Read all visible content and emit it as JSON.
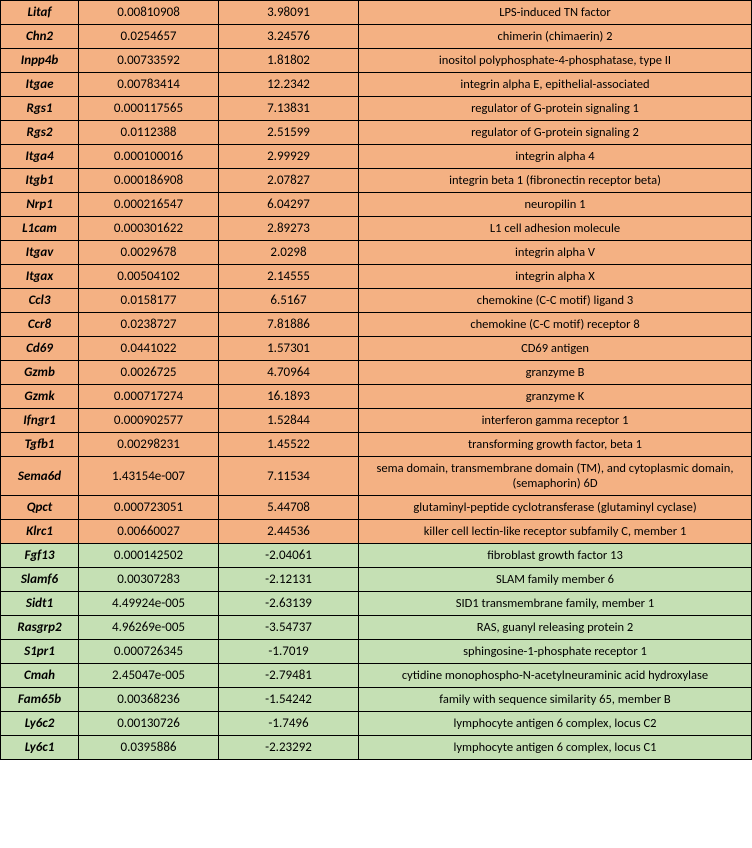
{
  "colors": {
    "orange": "#f4b183",
    "green": "#c5e0b4",
    "border": "#000000"
  },
  "rows": [
    {
      "gene": "Litaf",
      "v1": "0.00810908",
      "v2": "3.98091",
      "desc": "LPS-induced TN factor",
      "group": "orange"
    },
    {
      "gene": "Chn2",
      "v1": "0.0254657",
      "v2": "3.24576",
      "desc": "chimerin (chimaerin) 2",
      "group": "orange"
    },
    {
      "gene": "Inpp4b",
      "v1": "0.00733592",
      "v2": "1.81802",
      "desc": "inositol polyphosphate-4-phosphatase, type II",
      "group": "orange"
    },
    {
      "gene": "Itgae",
      "v1": "0.00783414",
      "v2": "12.2342",
      "desc": "integrin alpha E, epithelial-associated",
      "group": "orange"
    },
    {
      "gene": "Rgs1",
      "v1": "0.000117565",
      "v2": "7.13831",
      "desc": "regulator of G-protein signaling 1",
      "group": "orange"
    },
    {
      "gene": "Rgs2",
      "v1": "0.0112388",
      "v2": "2.51599",
      "desc": "regulator of G-protein signaling 2",
      "group": "orange"
    },
    {
      "gene": "Itga4",
      "v1": "0.000100016",
      "v2": "2.99929",
      "desc": "integrin alpha 4",
      "group": "orange"
    },
    {
      "gene": "Itgb1",
      "v1": "0.000186908",
      "v2": "2.07827",
      "desc": "integrin beta 1 (fibronectin receptor beta)",
      "group": "orange"
    },
    {
      "gene": "Nrp1",
      "v1": "0.000216547",
      "v2": "6.04297",
      "desc": "neuropilin 1",
      "group": "orange"
    },
    {
      "gene": "L1cam",
      "v1": "0.000301622",
      "v2": "2.89273",
      "desc": "L1 cell adhesion molecule",
      "group": "orange"
    },
    {
      "gene": "Itgav",
      "v1": "0.0029678",
      "v2": "2.0298",
      "desc": "integrin alpha V",
      "group": "orange"
    },
    {
      "gene": "Itgax",
      "v1": "0.00504102",
      "v2": "2.14555",
      "desc": "integrin alpha X",
      "group": "orange"
    },
    {
      "gene": "Ccl3",
      "v1": "0.0158177",
      "v2": "6.5167",
      "desc": "chemokine (C-C motif) ligand 3",
      "group": "orange"
    },
    {
      "gene": "Ccr8",
      "v1": "0.0238727",
      "v2": "7.81886",
      "desc": "chemokine (C-C motif) receptor 8",
      "group": "orange"
    },
    {
      "gene": "Cd69",
      "v1": "0.0441022",
      "v2": "1.57301",
      "desc": "CD69 antigen",
      "group": "orange"
    },
    {
      "gene": "Gzmb",
      "v1": "0.0026725",
      "v2": "4.70964",
      "desc": "granzyme B",
      "group": "orange"
    },
    {
      "gene": "Gzmk",
      "v1": "0.000717274",
      "v2": "16.1893",
      "desc": "granzyme K",
      "group": "orange"
    },
    {
      "gene": "Ifngr1",
      "v1": "0.000902577",
      "v2": "1.52844",
      "desc": "interferon gamma receptor 1",
      "group": "orange"
    },
    {
      "gene": "Tgfb1",
      "v1": "0.00298231",
      "v2": "1.45522",
      "desc": "transforming growth factor, beta 1",
      "group": "orange"
    },
    {
      "gene": "Sema6d",
      "v1": "1.43154e-007",
      "v2": "7.11534",
      "desc": "sema domain, transmembrane domain (TM), and cytoplasmic domain, (semaphorin) 6D",
      "group": "orange"
    },
    {
      "gene": "Qpct",
      "v1": "0.000723051",
      "v2": "5.44708",
      "desc": "glutaminyl-peptide cyclotransferase (glutaminyl cyclase)",
      "group": "orange"
    },
    {
      "gene": "Klrc1",
      "v1": "0.00660027",
      "v2": "2.44536",
      "desc": "killer cell lectin-like receptor subfamily C, member 1",
      "group": "orange"
    },
    {
      "gene": "Fgf13",
      "v1": "0.000142502",
      "v2": "-2.04061",
      "desc": "fibroblast growth factor 13",
      "group": "green"
    },
    {
      "gene": "Slamf6",
      "v1": "0.00307283",
      "v2": "-2.12131",
      "desc": "SLAM family member 6",
      "group": "green"
    },
    {
      "gene": "Sidt1",
      "v1": "4.49924e-005",
      "v2": "-2.63139",
      "desc": "SID1 transmembrane family, member 1",
      "group": "green"
    },
    {
      "gene": "Rasgrp2",
      "v1": "4.96269e-005",
      "v2": "-3.54737",
      "desc": "RAS, guanyl releasing protein 2",
      "group": "green"
    },
    {
      "gene": "S1pr1",
      "v1": "0.000726345",
      "v2": "-1.7019",
      "desc": "sphingosine-1-phosphate receptor 1",
      "group": "green"
    },
    {
      "gene": "Cmah",
      "v1": "2.45047e-005",
      "v2": "-2.79481",
      "desc": "cytidine monophospho-N-acetylneuraminic acid hydroxylase",
      "group": "green"
    },
    {
      "gene": "Fam65b",
      "v1": "0.00368236",
      "v2": "-1.54242",
      "desc": "family with sequence similarity 65, member B",
      "group": "green"
    },
    {
      "gene": "Ly6c2",
      "v1": "0.00130726",
      "v2": "-1.7496",
      "desc": "lymphocyte antigen 6 complex, locus C2",
      "group": "green"
    },
    {
      "gene": "Ly6c1",
      "v1": "0.0395886",
      "v2": "-2.23292",
      "desc": "lymphocyte antigen 6 complex, locus C1",
      "group": "green"
    }
  ]
}
